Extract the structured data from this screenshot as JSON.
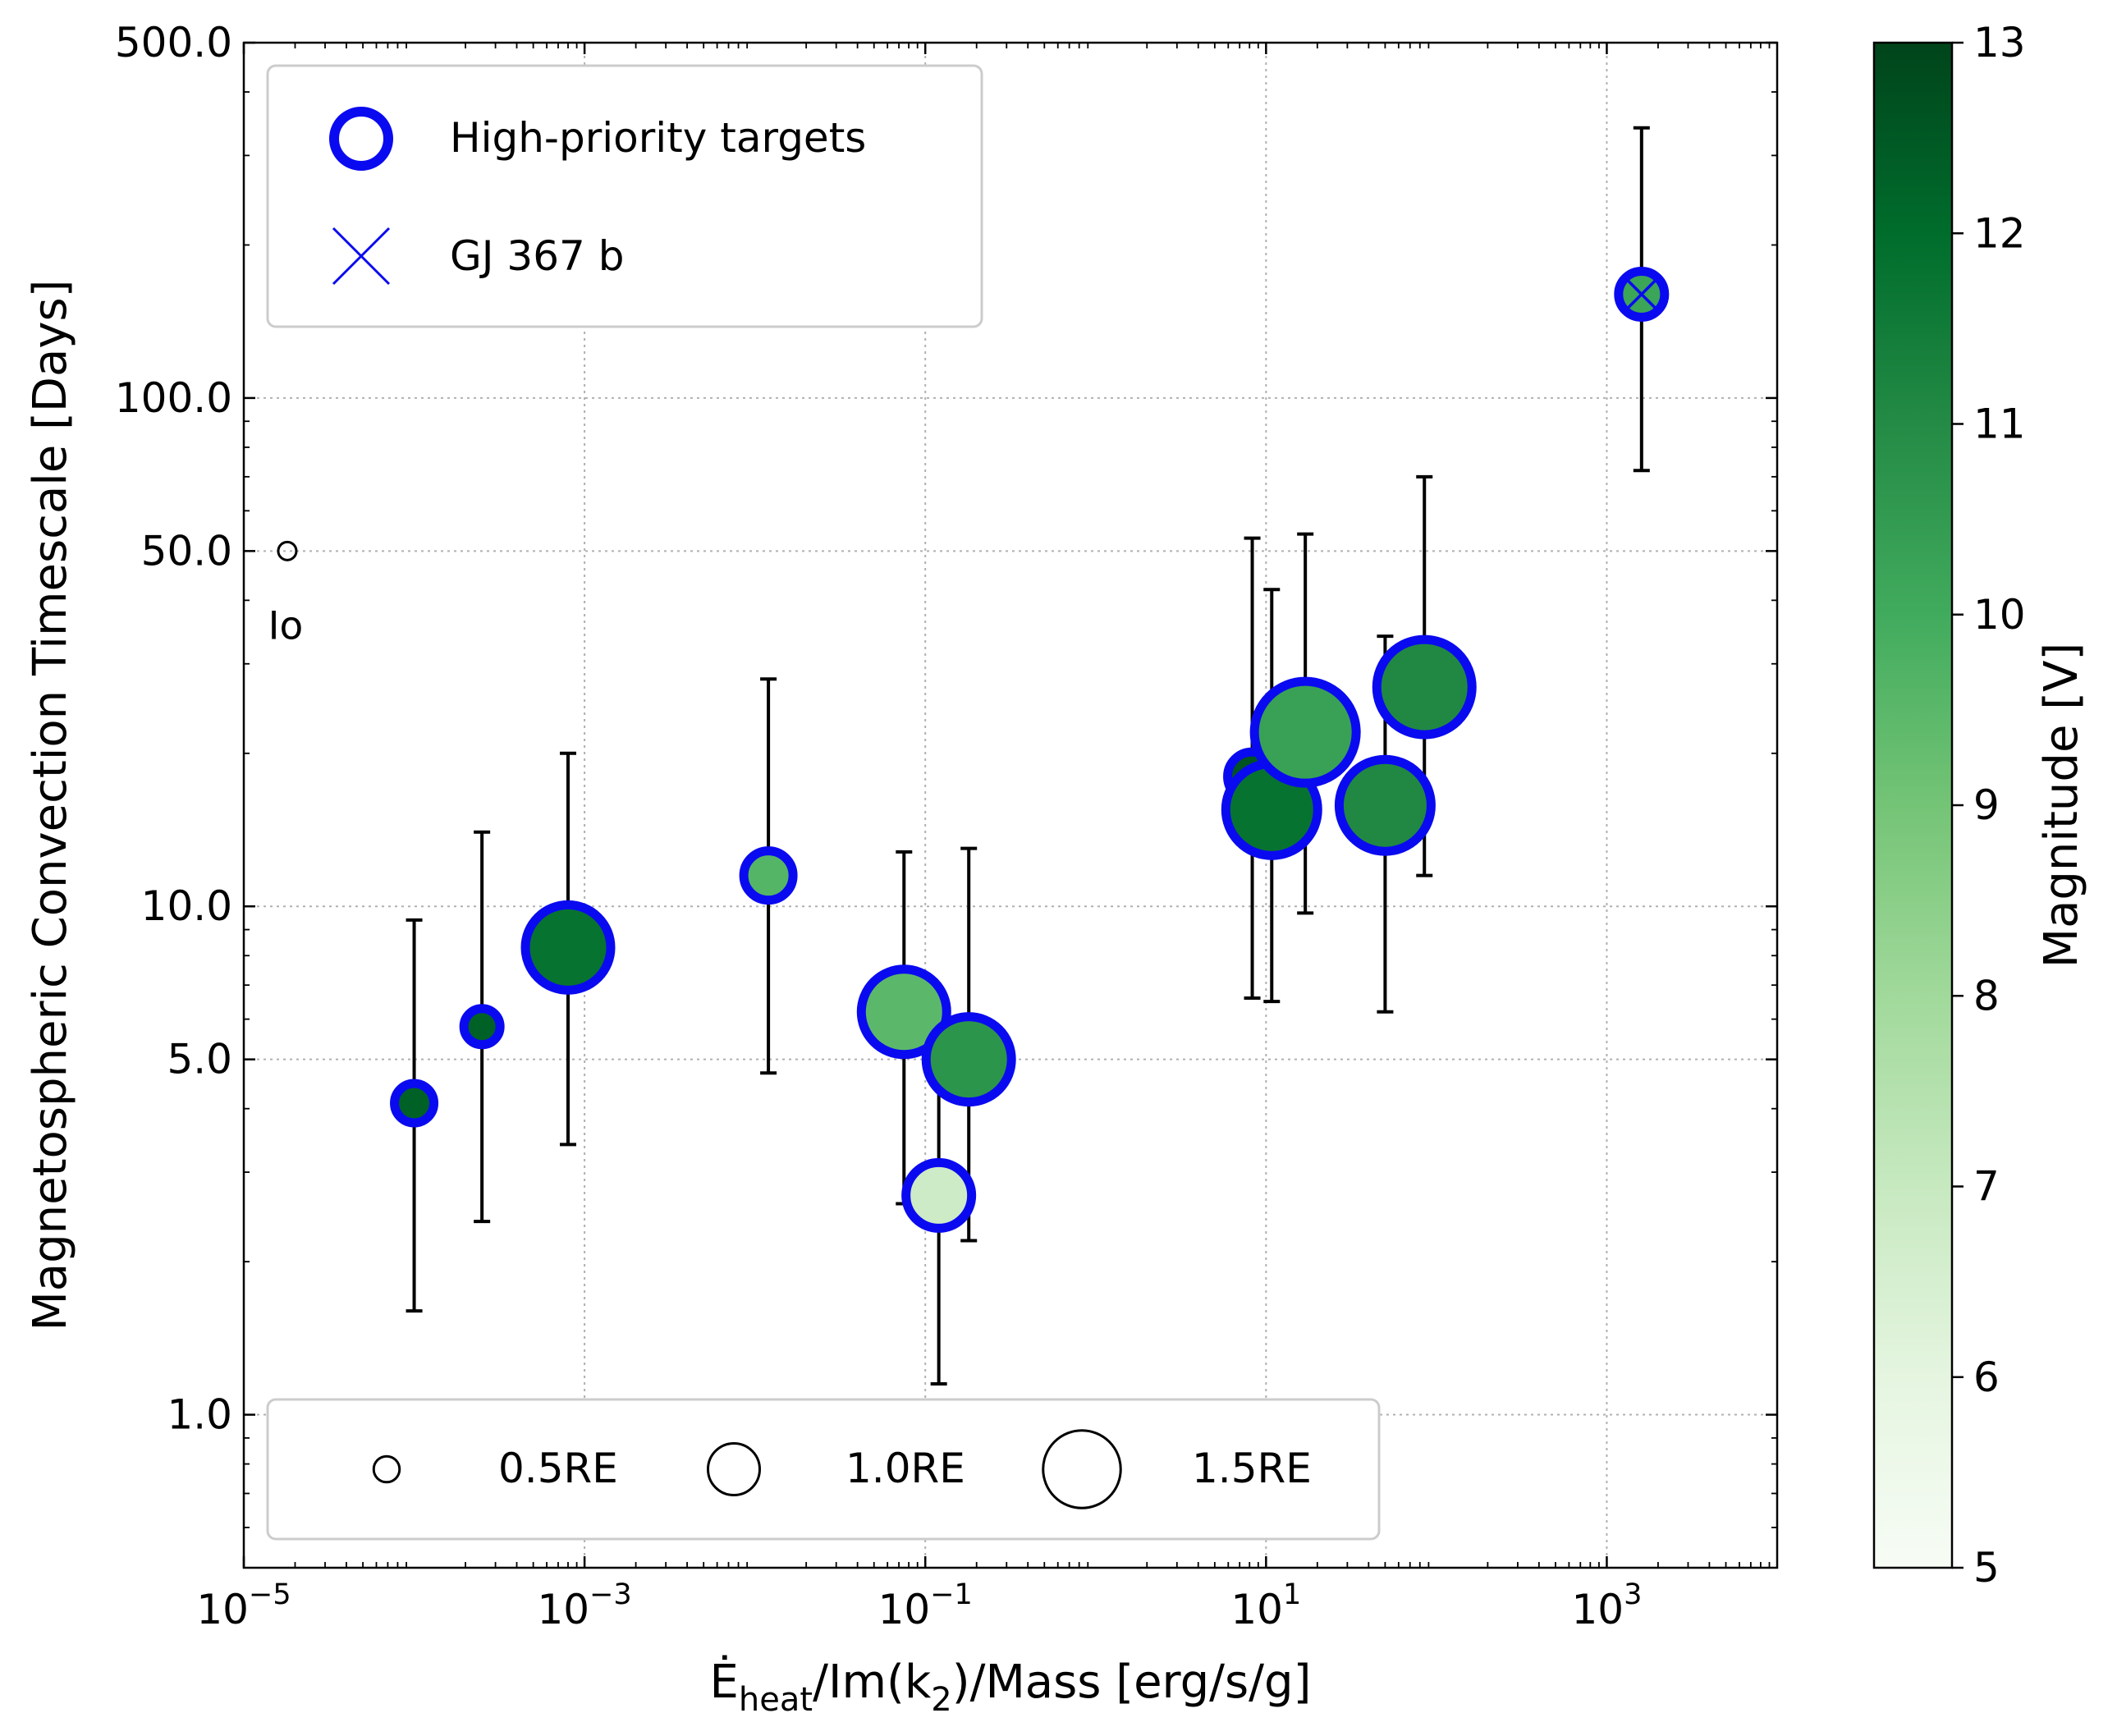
{
  "chart_data": {
    "type": "scatter",
    "xlabel_parts": {
      "base": "Ė",
      "sub1": "heat",
      "mid": "/Im(k",
      "sub2": "2",
      "end": ")/Mass [erg/s/g]"
    },
    "ylabel": "Magnetospheric Convection Timescale [Days]",
    "x_scale": "log",
    "y_scale": "log",
    "xlim": [
      1e-05,
      10000
    ],
    "ylim": [
      0.5,
      500
    ],
    "x_ticks": [
      {
        "value": 1e-05,
        "base": "10",
        "exp": "−5"
      },
      {
        "value": 0.001,
        "base": "10",
        "exp": "−3"
      },
      {
        "value": 0.1,
        "base": "10",
        "exp": "−1"
      },
      {
        "value": 10,
        "base": "10",
        "exp": "1"
      },
      {
        "value": 1000,
        "base": "10",
        "exp": "3"
      }
    ],
    "y_ticks": [
      {
        "value": 1,
        "label": "1.0"
      },
      {
        "value": 5,
        "label": "5.0"
      },
      {
        "value": 10,
        "label": "10.0"
      },
      {
        "value": 50,
        "label": "50.0"
      },
      {
        "value": 100,
        "label": "100.0"
      },
      {
        "value": 500,
        "label": "500.0"
      }
    ],
    "grid": true,
    "colorbar": {
      "label": "Magnitude [V]",
      "range": [
        5,
        13
      ],
      "ticks": [
        "5",
        "6",
        "7",
        "8",
        "9",
        "10",
        "11",
        "12",
        "13"
      ],
      "colormap": "Greens",
      "stops": [
        "#f7fcf5",
        "#e5f5e0",
        "#c7e9c0",
        "#a1d99b",
        "#74c476",
        "#41ab5d",
        "#238b45",
        "#006d2c",
        "#00441b"
      ]
    },
    "edge_color": "#0a0af0",
    "points": [
      {
        "x": 0.0001,
        "y": 4.1,
        "err_low": 1.6,
        "err_high": 9.4,
        "radius_re": 0.6,
        "magnitude": 12.3
      },
      {
        "x": 0.00025,
        "y": 5.8,
        "err_low": 2.4,
        "err_high": 14.0,
        "radius_re": 0.55,
        "magnitude": 12.3
      },
      {
        "x": 0.0008,
        "y": 8.3,
        "err_low": 3.4,
        "err_high": 20.0,
        "radius_re": 1.3,
        "magnitude": 11.8
      },
      {
        "x": 0.012,
        "y": 11.5,
        "err_low": 4.7,
        "err_high": 28.0,
        "radius_re": 0.75,
        "magnitude": 9.6
      },
      {
        "x": 0.075,
        "y": 6.2,
        "err_low": 2.6,
        "err_high": 12.8,
        "radius_re": 1.3,
        "magnitude": 9.5
      },
      {
        "x": 0.12,
        "y": 2.7,
        "err_low": 1.15,
        "err_high": 6.0,
        "radius_re": 1.0,
        "magnitude": 6.8
      },
      {
        "x": 0.18,
        "y": 5.0,
        "err_low": 2.2,
        "err_high": 13.0,
        "radius_re": 1.3,
        "magnitude": 10.7
      },
      {
        "x": 8.3,
        "y": 18.0,
        "err_low": 6.6,
        "err_high": 53.0,
        "radius_re": 0.75,
        "magnitude": 12.6
      },
      {
        "x": 10.8,
        "y": 15.5,
        "err_low": 6.5,
        "err_high": 42.0,
        "radius_re": 1.4,
        "magnitude": 11.8
      },
      {
        "x": 17.0,
        "y": 22.0,
        "err_low": 9.7,
        "err_high": 54.0,
        "radius_re": 1.55,
        "magnitude": 10.3
      },
      {
        "x": 50.0,
        "y": 15.8,
        "err_low": 6.2,
        "err_high": 34.0,
        "radius_re": 1.4,
        "magnitude": 11.1
      },
      {
        "x": 85.0,
        "y": 27.0,
        "err_low": 11.5,
        "err_high": 70.0,
        "radius_re": 1.45,
        "magnitude": 11.1
      },
      {
        "x": 1600.0,
        "y": 160.0,
        "err_low": 72.0,
        "err_high": 340.0,
        "radius_re": 0.7,
        "magnitude": 10.2,
        "marker": "GJ 367 b"
      }
    ],
    "io_point": {
      "x": 1.8e-05,
      "y": 50.0,
      "label": "Io"
    },
    "legend_top": [
      {
        "label": "High-priority targets",
        "marker": "open-circle"
      },
      {
        "label": "GJ 367 b",
        "marker": "x"
      }
    ],
    "legend_bottom": [
      {
        "label": "0.5RE",
        "radius_re": 0.5
      },
      {
        "label": "1.0RE",
        "radius_re": 1.0
      },
      {
        "label": "1.5RE",
        "radius_re": 1.5
      }
    ]
  }
}
